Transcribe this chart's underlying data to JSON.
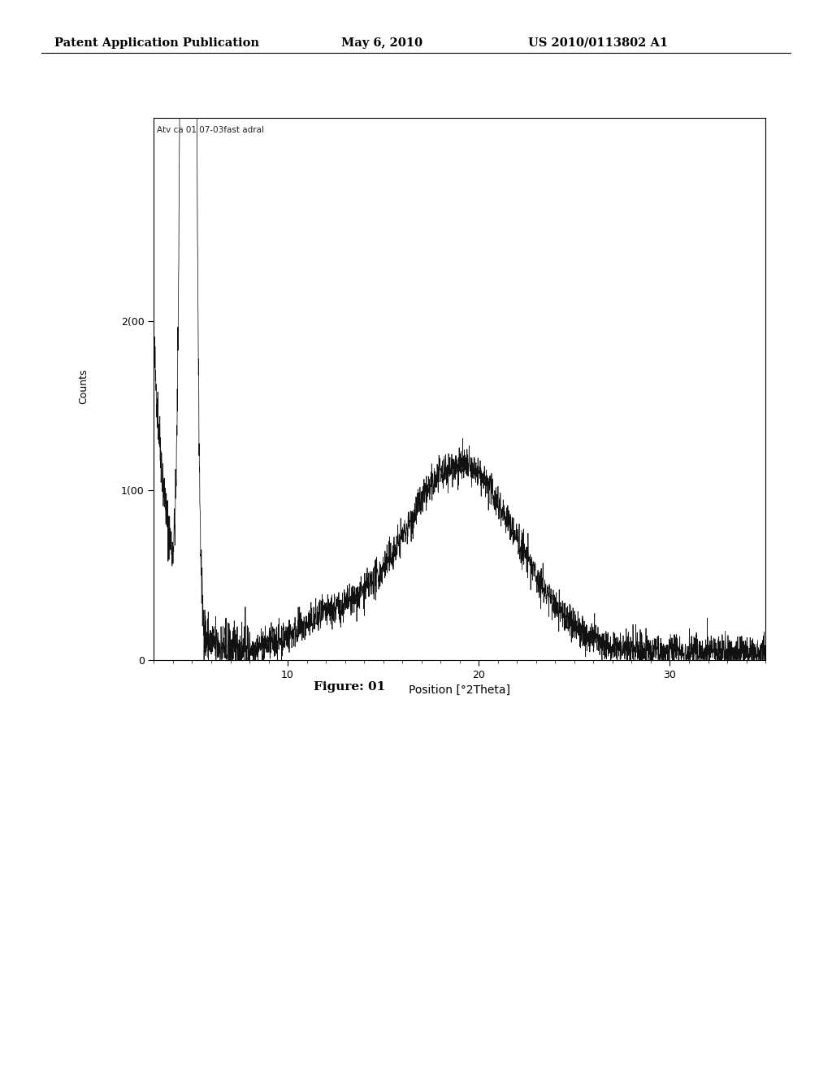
{
  "header_left": "Patent Application Publication",
  "header_center": "May 6, 2010",
  "header_right": "US 2010/0113802 A1",
  "figure_label": "Figure: 01",
  "legend_text": "Atv ca 01 07-03fast adral",
  "xlabel": "Position [°2Theta]",
  "ylabel": "Counts",
  "ytick_labels": [
    "0",
    "1(00",
    "2(00"
  ],
  "ytick_values": [
    0,
    1000,
    2000
  ],
  "xtick_labels": [
    "10",
    "20",
    "30"
  ],
  "xtick_values": [
    10,
    20,
    30
  ],
  "xlim": [
    3,
    35
  ],
  "ylim": [
    0,
    3200
  ],
  "background_color": "#ffffff",
  "line_color": "#111111"
}
